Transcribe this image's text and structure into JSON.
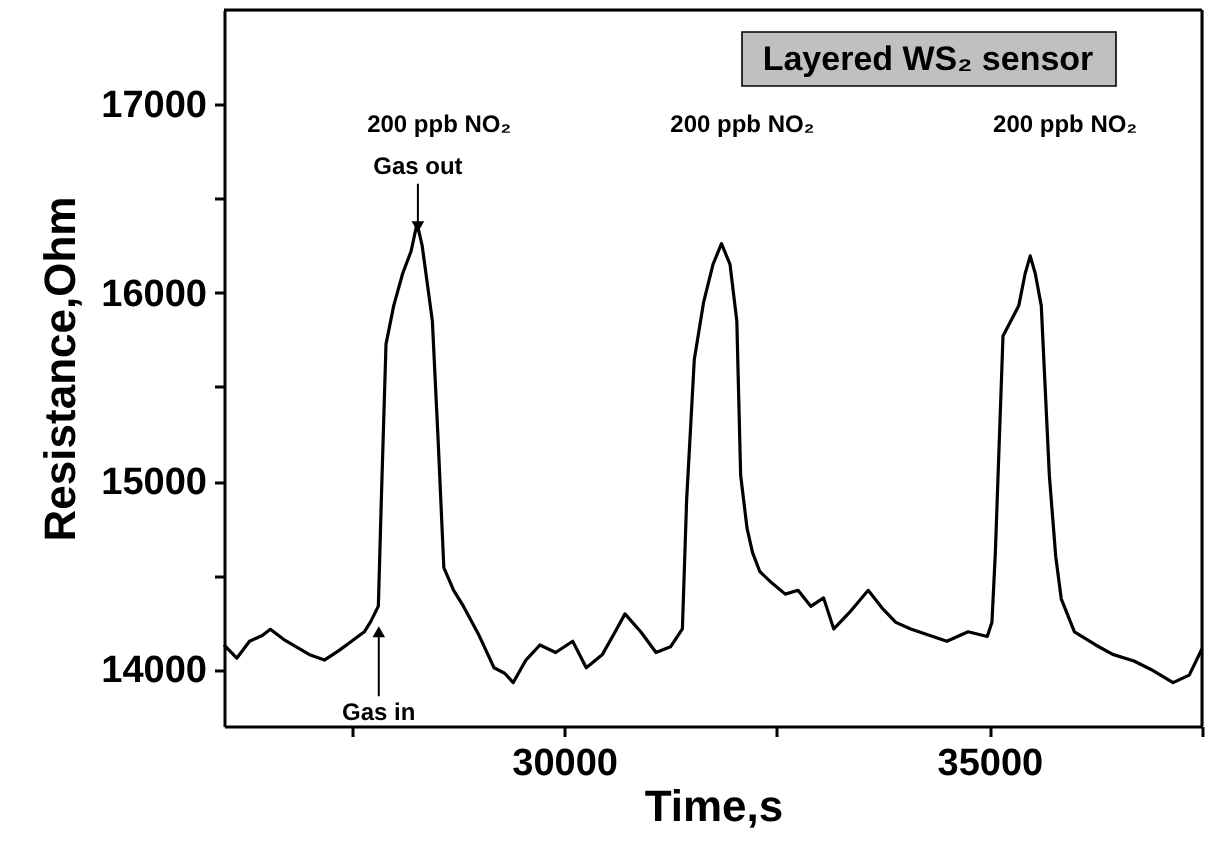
{
  "chart_data": {
    "type": "line",
    "title": "Layered WS₂ sensor",
    "xlabel": "Time,s",
    "ylabel": "Resistance,Ohm",
    "xlim": [
      26000,
      37500
    ],
    "ylim": [
      13700,
      17500
    ],
    "xticks": [
      {
        "value": 27500,
        "label": null
      },
      30000,
      {
        "value": 32500,
        "label": null
      },
      35000,
      {
        "value": 37500,
        "label": null
      }
    ],
    "yticks": [
      14000,
      {
        "value": 14500,
        "label": null
      },
      15000,
      {
        "value": 15500,
        "label": null
      },
      16000,
      {
        "value": 16500,
        "label": null
      },
      17000
    ],
    "grid": false,
    "marker": "none",
    "line_style": "solid",
    "annotations": [
      "200 ppb NO₂",
      "200 ppb NO₂",
      "200 ppb NO₂",
      {
        "text": "Gas out",
        "x": 28280,
        "y": 16350
      },
      {
        "text": "Gas in",
        "x": 27820,
        "y": 14200
      }
    ],
    "series": [
      {
        "color": "#000000",
        "x": [
          26000,
          26150,
          26300,
          26450,
          26545,
          26700,
          26850,
          27000,
          27180,
          27350,
          27500,
          27650,
          27725,
          27815,
          27850,
          27905,
          27995,
          28100,
          28200,
          28270,
          28330,
          28450,
          28520,
          28585,
          28700,
          28815,
          29000,
          29175,
          29300,
          29400,
          29550,
          29715,
          29900,
          30100,
          30260,
          30450,
          30600,
          30715,
          30900,
          31080,
          31250,
          31390,
          31440,
          31530,
          31640,
          31750,
          31850,
          31950,
          32030,
          32075,
          32150,
          32215,
          32300,
          32440,
          32600,
          32750,
          32900,
          33050,
          33170,
          33350,
          33575,
          33750,
          33900,
          34075,
          34300,
          34500,
          34750,
          34975,
          35030,
          35070,
          35160,
          35345,
          35420,
          35480,
          35540,
          35610,
          35705,
          35780,
          35845,
          36000,
          36250,
          36450,
          36700,
          36900,
          37160,
          37350,
          37500
        ],
        "values": [
          14130,
          14060,
          14150,
          14180,
          14213,
          14160,
          14120,
          14080,
          14050,
          14100,
          14150,
          14200,
          14254,
          14336,
          14900,
          15727,
          15930,
          16100,
          16220,
          16367,
          16250,
          15850,
          15196,
          14540,
          14420,
          14336,
          14180,
          14009,
          13980,
          13930,
          14050,
          14130,
          14090,
          14150,
          14009,
          14080,
          14200,
          14295,
          14200,
          14090,
          14120,
          14215,
          14900,
          15645,
          15950,
          16150,
          16260,
          16150,
          15850,
          15031,
          14750,
          14620,
          14520,
          14460,
          14400,
          14420,
          14335,
          14380,
          14215,
          14300,
          14420,
          14320,
          14250,
          14215,
          14180,
          14150,
          14200,
          14175,
          14250,
          14620,
          15770,
          15930,
          16100,
          16195,
          16100,
          15930,
          15030,
          14600,
          14375,
          14200,
          14130,
          14080,
          14045,
          14000,
          13930,
          13970,
          14110
        ]
      }
    ]
  }
}
